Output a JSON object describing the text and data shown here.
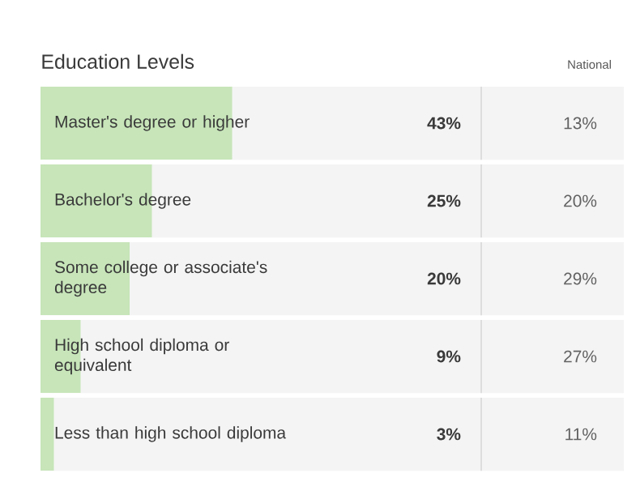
{
  "chart_data": {
    "type": "bar",
    "orientation": "horizontal",
    "title": "Education Levels",
    "categories": [
      "Master's degree or higher",
      "Bachelor's degree",
      "Some college or associate's degree",
      "High school diploma or equivalent",
      "Less than high school diploma"
    ],
    "series": [
      {
        "color": "#c7e5b9",
        "values": [
          43,
          25,
          20,
          9,
          3
        ],
        "value_labels": [
          "43%",
          "25%",
          "20%",
          "9%",
          "3%"
        ]
      }
    ],
    "annotations": [
      "National",
      "13%",
      "20%",
      "29%",
      "27%",
      "11%"
    ]
  }
}
